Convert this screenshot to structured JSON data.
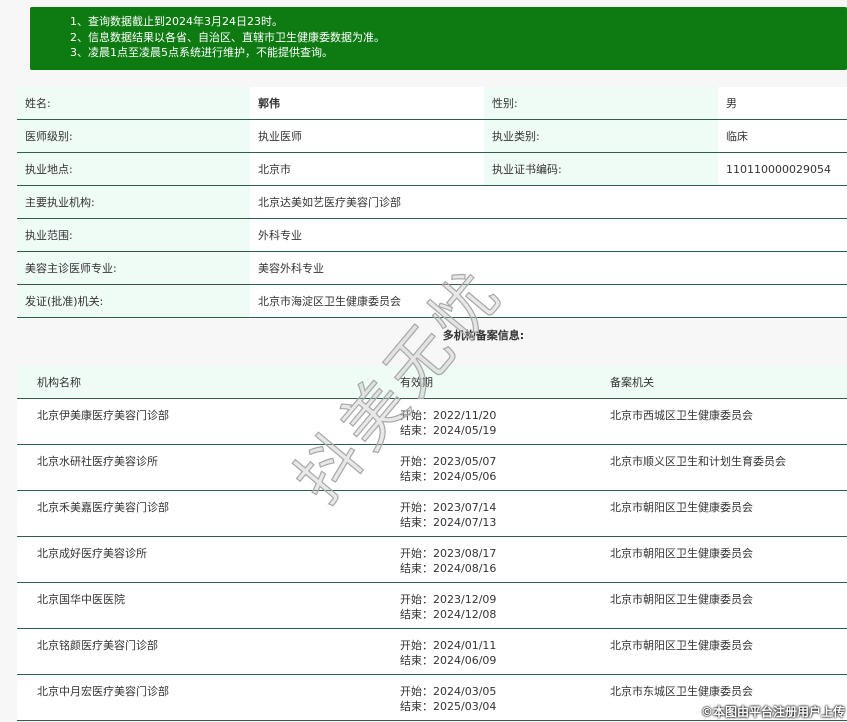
{
  "notice": [
    "1、查询数据截止到2024年3月24日23时。",
    "2、信息数据结果以各省、自治区、直辖市卫生健康委数据为准。",
    "3、凌晨1点至凌晨5点系统进行维护，不能提供查询。"
  ],
  "info": {
    "name_label": "姓名:",
    "name": "郭伟",
    "gender_label": "性别:",
    "gender": "男",
    "level_label": "医师级别:",
    "level": "执业医师",
    "category_label": "执业类别:",
    "category": "临床",
    "location_label": "执业地点:",
    "location": "北京市",
    "cert_label": "执业证书编码:",
    "cert": "110110000029054",
    "org_label": "主要执业机构:",
    "org": "北京达美如艺医疗美容门诊部",
    "scope_label": "执业范围:",
    "scope": "外科专业",
    "specialty_label": "美容主诊医师专业:",
    "specialty": "美容外科专业",
    "issuer_label": "发证(批准)机关:",
    "issuer": "北京市海淀区卫生健康委员会"
  },
  "section_title": "多机构备案信息:",
  "multi": {
    "headers": [
      "机构名称",
      "有效期",
      "备案机关"
    ],
    "rows": [
      {
        "name": "北京伊美康医疗美容门诊部",
        "start": "开始：2022/11/20",
        "end": "结束：2024/05/19",
        "agency": "北京市西城区卫生健康委员会"
      },
      {
        "name": "北京水研社医疗美容诊所",
        "start": "开始：2023/05/07",
        "end": "结束：2024/05/06",
        "agency": "北京市顺义区卫生和计划生育委员会"
      },
      {
        "name": "北京禾美嘉医疗美容门诊部",
        "start": "开始：2023/07/14",
        "end": "结束：2024/07/13",
        "agency": "北京市朝阳区卫生健康委员会"
      },
      {
        "name": "北京成好医疗美容诊所",
        "start": "开始：2023/08/17",
        "end": "结束：2024/08/16",
        "agency": "北京市朝阳区卫生健康委员会"
      },
      {
        "name": "北京国华中医医院",
        "start": "开始：2023/12/09",
        "end": "结束：2024/12/08",
        "agency": "北京市朝阳区卫生健康委员会"
      },
      {
        "name": "北京铭颜医疗美容门诊部",
        "start": "开始：2024/01/11",
        "end": "结束：2024/06/09",
        "agency": "北京市朝阳区卫生健康委员会"
      },
      {
        "name": "北京中月宏医疗美容门诊部",
        "start": "开始：2024/03/05",
        "end": "结束：2025/03/04",
        "agency": "北京市东城区卫生健康委员会"
      }
    ]
  },
  "watermark": "抖美无忧",
  "credit": "©本图由平台注册用户上传"
}
